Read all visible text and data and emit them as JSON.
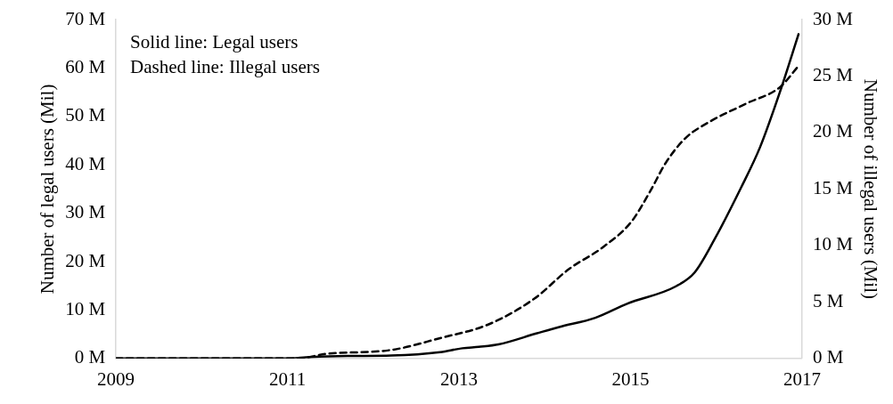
{
  "chart_data": {
    "type": "line",
    "xlabel": null,
    "ylabel": "Number of legal users (Mil)",
    "y2label": "Number of illegal users (Mil)",
    "xlim": [
      2009,
      2017
    ],
    "xticks": [
      2009,
      2011,
      2013,
      2015,
      2017
    ],
    "ylim": [
      0,
      70
    ],
    "yticks": [
      {
        "value": 0,
        "label": "0 M"
      },
      {
        "value": 10,
        "label": "10 M"
      },
      {
        "value": 20,
        "label": "20 M"
      },
      {
        "value": 30,
        "label": "30 M"
      },
      {
        "value": 40,
        "label": "40 M"
      },
      {
        "value": 50,
        "label": "50 M"
      },
      {
        "value": 60,
        "label": "60 M"
      },
      {
        "value": 70,
        "label": "70 M"
      }
    ],
    "y2lim": [
      0,
      30
    ],
    "y2ticks": [
      {
        "value": 0,
        "label": "0 M"
      },
      {
        "value": 5,
        "label": "5 M"
      },
      {
        "value": 10,
        "label": "10 M"
      },
      {
        "value": 15,
        "label": "15 M"
      },
      {
        "value": 20,
        "label": "20 M"
      },
      {
        "value": 25,
        "label": "25 M"
      },
      {
        "value": 30,
        "label": "30 M"
      }
    ],
    "grid": false,
    "legend": false,
    "marker": "none",
    "annotations": [
      "Solid line: Legal users",
      "Dashed line: Illegal users"
    ],
    "series": [
      {
        "color": "#000000",
        "line_style": "solid",
        "x": [
          2009,
          2010,
          2010.97,
          2011.27,
          2011.7,
          2012.21,
          2012.78,
          2013.04,
          2013.23,
          2013.46,
          2013.91,
          2014.17,
          2014.59,
          2014.96,
          2015.53,
          2015.75,
          2015.98,
          2016.29,
          2016.51,
          2016.74,
          2016.96
        ],
        "values": [
          0,
          0,
          0,
          0.3,
          0.5,
          0.6,
          1.3,
          2.1,
          2.4,
          2.9,
          5.2,
          6.5,
          8.4,
          11.3,
          14.9,
          17.8,
          24.6,
          35.3,
          43.6,
          54.9,
          67.0
        ]
      },
      {
        "color": "#000000",
        "line_style": "dashed",
        "axis": "y2",
        "x": [
          2009,
          2010,
          2011.12,
          2011.45,
          2012.21,
          2012.78,
          2013.34,
          2013.88,
          2014.28,
          2014.67,
          2015.01,
          2015.23,
          2015.41,
          2015.64,
          2015.91,
          2016.36,
          2016.74,
          2016.96
        ],
        "values": [
          0,
          0,
          0,
          0.4,
          0.75,
          1.8,
          3.0,
          5.3,
          7.9,
          9.8,
          12.1,
          14.8,
          17.3,
          19.5,
          20.9,
          22.6,
          24.0,
          25.9
        ]
      }
    ]
  }
}
